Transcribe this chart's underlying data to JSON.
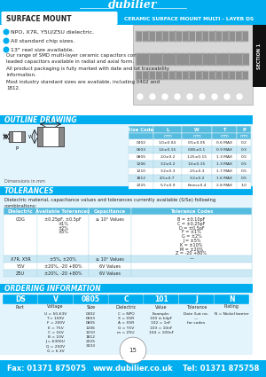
{
  "title_logo": "dubilier",
  "header_left": "SURFACE MOUNT",
  "header_right": "CERAMIC SURFACE MOUNT MULTI - LAYER DS",
  "section_label": "SECTION 1",
  "bullets": [
    "NPO, X7R, Y5U/Z5U dielectric.",
    "All standard chip sizes.",
    "13\" reel size available."
  ],
  "desc1": "Our range of SMD multi-layer ceramic capacitors compliments the\nleaded capacitors available in radial and axial form.",
  "desc2": "All product packaging is fully marked with date and lot traceability\ninformation.",
  "desc3": "Most industry standard sizes are available, including 0402 and\n1812.",
  "outline_title": "OUTLINE DRAWING",
  "table_col_headers": [
    "L",
    "W",
    "T",
    "P"
  ],
  "table_rows": [
    [
      "0402",
      "1.0±0.04",
      "0.5±0.05",
      "0.6 MAX",
      "0.2"
    ],
    [
      "0603",
      "1.6±0.15",
      "0.85±0.1",
      "0.9 MAX",
      "0.3"
    ],
    [
      "0805",
      "2.0±0.2",
      "1.25±0.15",
      "1.3 MAX",
      "0.5"
    ],
    [
      "1206",
      "3.2±0.2",
      "1.6±0.15",
      "1.3 MAX",
      "0.5"
    ],
    [
      "1210",
      "3.2±0.3",
      "2.5±0.3",
      "1.7 MAX",
      "0.5"
    ],
    [
      "1812",
      "4.5±0.7",
      "3.2±0.2",
      "1.6 MAX",
      "0.5"
    ],
    [
      "2225",
      "5.7±0.9",
      "6mm±0.4",
      "2.8 MAX",
      "1.0"
    ]
  ],
  "tolerances_title": "TOLERANCES",
  "tolerances_note": "Dielectric material, capacitance values and tolerances currently available (S/Se) following\ncombinations:",
  "tol_col_headers": [
    "Dielectric",
    "Available Tolerances",
    "Capacitance",
    "Tolerance Codes"
  ],
  "tol_rows": [
    [
      "COG",
      "±0.25pF, ±0.5pF\n±1%\n±2%\n±5%",
      "≥ 10° Values",
      "B = ±0.10pF\nC = ±0.25pF\nD = ±0.5pF\nF = ±1%\nG = ±2%\nJ = ±5%\nK = ±10%\nM = ±20%\nZ = -20 +80%"
    ],
    [
      "X7R, X5R",
      "±5%, ±20%",
      "≥ 10° Values",
      "—"
    ],
    [
      "Y5V",
      "±20%, -20 +80%",
      "6V Values",
      ""
    ],
    [
      "Z5U",
      "±20%, -20 +80%",
      "6V Values",
      ""
    ]
  ],
  "ordering_title": "ORDERING INFORMATION",
  "order_cols": [
    "DS",
    "V",
    "0805",
    "C",
    "101",
    "J",
    "N"
  ],
  "order_sub": [
    "Part",
    "Voltage",
    "Size",
    "Dielectric",
    "Value",
    "Tolerance",
    "Plating"
  ],
  "voltage_list": [
    "U = 50-63V",
    "T = 100V",
    "F = 200V",
    "E = 75V",
    "C = 16V",
    "B = 10V",
    "J = 6300U",
    "Q = 250V",
    "G = 6.3V"
  ],
  "size_list": [
    "0402",
    "0603",
    "0805",
    "1206",
    "1210",
    "1812",
    "2225",
    "3333"
  ],
  "dielectric_list": [
    "C = NPO",
    "X = X5R",
    "A = X5R",
    "G = Y5V",
    "m = Z5U"
  ],
  "value_example": [
    "Example:",
    "100 in kilpF",
    "102 = 1nF",
    "103 = 10nF",
    "104 = 100nF"
  ],
  "tolerance_detail": [
    "Date /Lot no.",
    "—",
    "for codes"
  ],
  "plating_list": [
    "N = Nickel barrier"
  ],
  "page_num": "15",
  "fax": "Fax: 01371 875075",
  "web": "www.dubilier.co.uk",
  "tel": "Tel: 01371 875758",
  "header_bg": "#00AEEF",
  "section_bg": "#111111",
  "light_blue_bg": "#E4F4FC",
  "mid_blue": "#55BBDF",
  "white": "#FFFFFF",
  "dark_text": "#222222",
  "row_alt": "#CBE9F5"
}
